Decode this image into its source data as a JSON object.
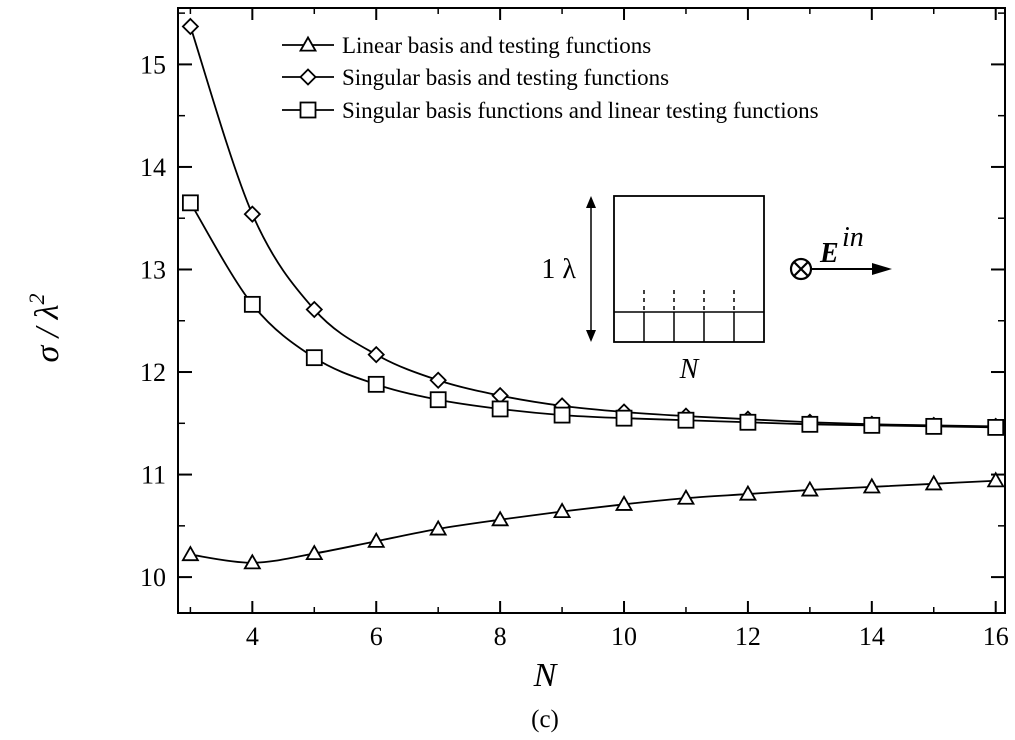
{
  "chart_data": {
    "type": "line",
    "xlabel": "N",
    "ylabel": "σ / λ²",
    "ylabel_main": "σ / λ",
    "ylabel_sup": "2",
    "caption": "(c)",
    "xlim": [
      2.8,
      16.15
    ],
    "ylim": [
      9.65,
      15.55
    ],
    "xticks": [
      4,
      6,
      8,
      10,
      12,
      14,
      16
    ],
    "yticks": [
      10,
      11,
      12,
      13,
      14,
      15
    ],
    "grid": false,
    "legend_position": "top-right",
    "series": [
      {
        "name": "Linear basis and testing functions",
        "marker": "triangle",
        "x": [
          3,
          4,
          5,
          6,
          7,
          8,
          9,
          10,
          11,
          12,
          13,
          14,
          15,
          16
        ],
        "values": [
          10.22,
          10.14,
          10.23,
          10.35,
          10.47,
          10.56,
          10.64,
          10.71,
          10.77,
          10.81,
          10.85,
          10.88,
          10.91,
          10.94
        ]
      },
      {
        "name": "Singular basis and testing functions",
        "marker": "diamond",
        "x": [
          3,
          4,
          5,
          6,
          7,
          8,
          9,
          10,
          11,
          12,
          13,
          14,
          15,
          16
        ],
        "values": [
          15.37,
          13.54,
          12.61,
          12.17,
          11.92,
          11.77,
          11.67,
          11.61,
          11.57,
          11.54,
          11.51,
          11.49,
          11.48,
          11.47
        ]
      },
      {
        "name": "Singular basis functions and linear testing functions",
        "marker": "square",
        "x": [
          3,
          4,
          5,
          6,
          7,
          8,
          9,
          10,
          11,
          12,
          13,
          14,
          15,
          16
        ],
        "values": [
          13.65,
          12.66,
          12.14,
          11.88,
          11.73,
          11.64,
          11.58,
          11.55,
          11.53,
          11.51,
          11.49,
          11.48,
          11.47,
          11.46
        ]
      }
    ],
    "inset": {
      "height_label": "1 λ",
      "width_label": "N",
      "field_label": "E",
      "field_sup": "in",
      "columns": 5
    }
  }
}
